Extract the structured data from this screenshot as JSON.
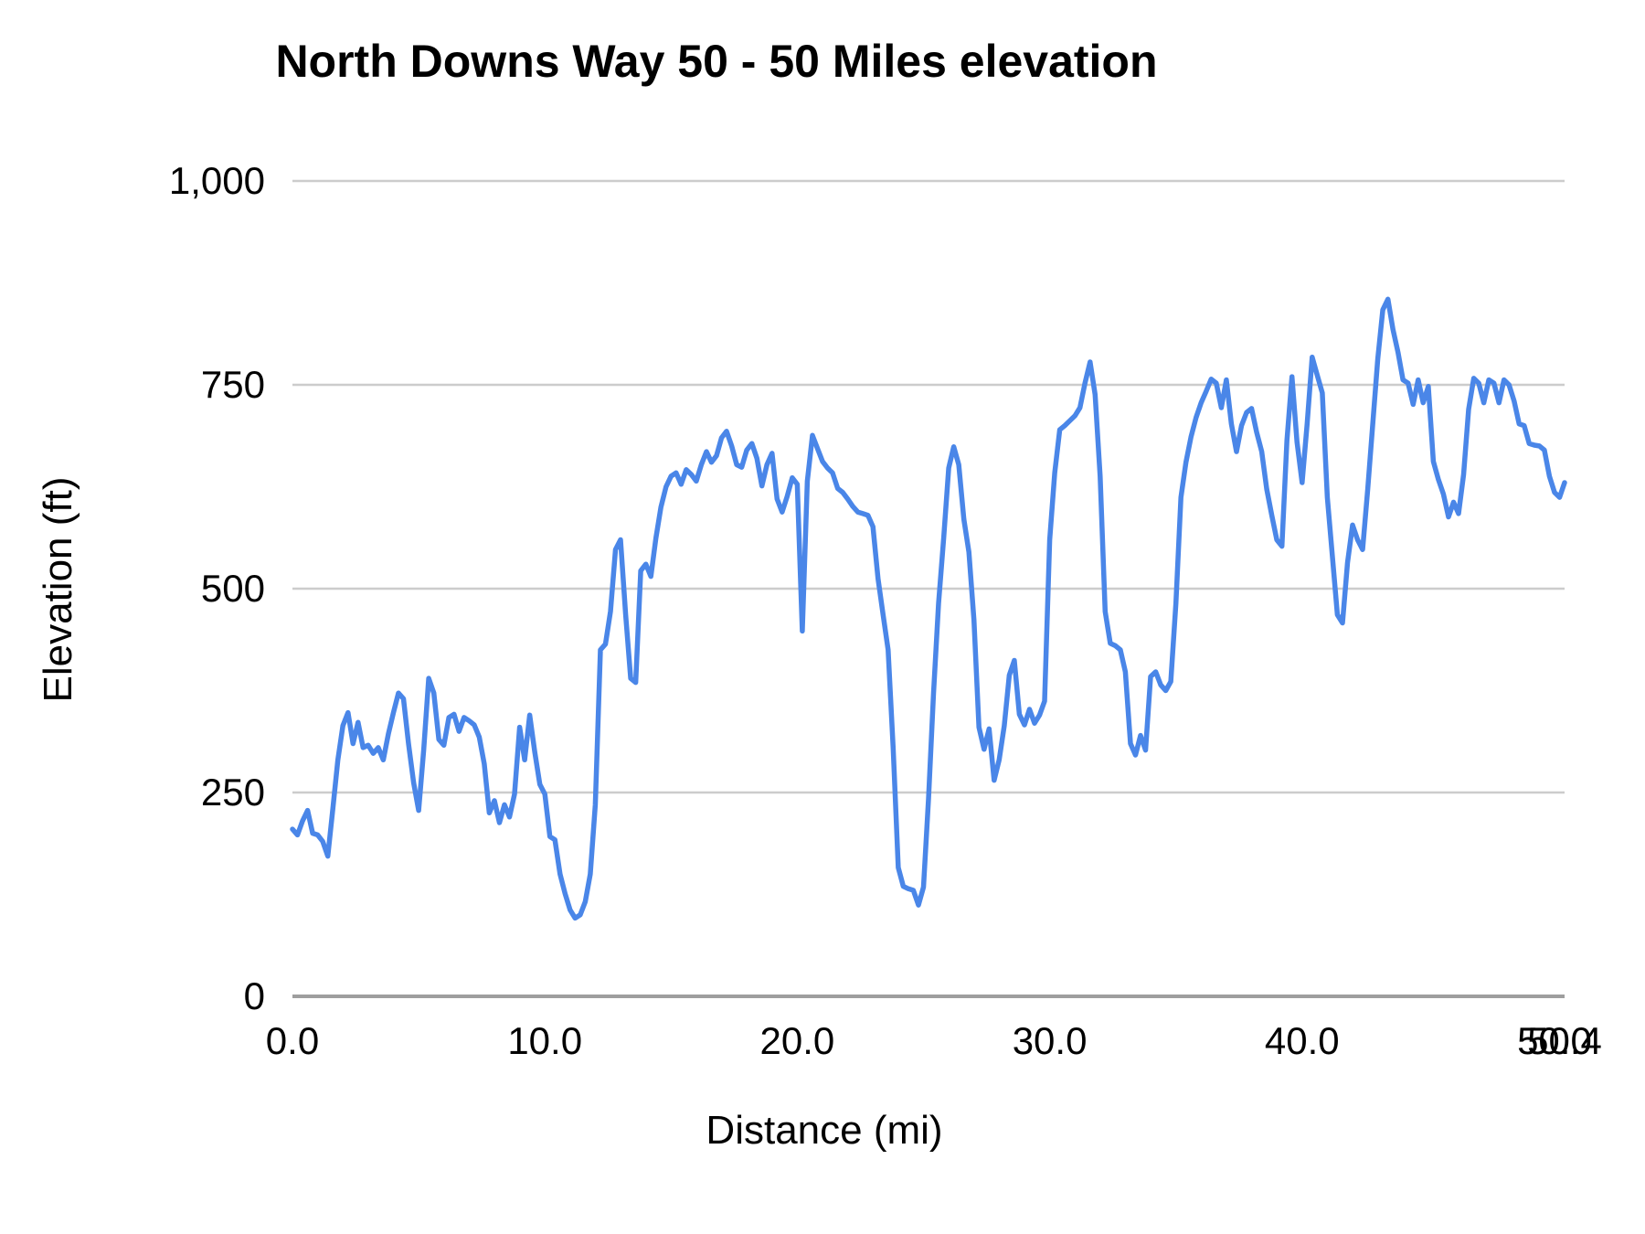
{
  "title": "North Downs Way 50 - 50 Miles elevation",
  "y_axis_title": "Elevation (ft)",
  "x_axis_title": "Distance (mi)",
  "colors": {
    "line": "#4A86E8",
    "gridline": "#cccccc",
    "baseline": "#9e9e9e",
    "text": "#000000",
    "background": "#ffffff"
  },
  "chart_data": {
    "type": "line",
    "title": "North Downs Way 50 - 50 Miles elevation",
    "xlabel": "Distance (mi)",
    "ylabel": "Elevation (ft)",
    "xlim": [
      0,
      50.4
    ],
    "ylim": [
      0,
      1000
    ],
    "grid": "horizontal-only",
    "legend_position": "none",
    "yticks": [
      {
        "v": 0,
        "label": "0"
      },
      {
        "v": 250,
        "label": "250"
      },
      {
        "v": 500,
        "label": "500"
      },
      {
        "v": 750,
        "label": "750"
      },
      {
        "v": 1000,
        "label": "1,000"
      }
    ],
    "xticks": [
      {
        "v": 0,
        "label": "0.0"
      },
      {
        "v": 10,
        "label": "10.0"
      },
      {
        "v": 20,
        "label": "20.0"
      },
      {
        "v": 30,
        "label": "30.0"
      },
      {
        "v": 40,
        "label": "40.0"
      },
      {
        "v": 50,
        "label": "50.0"
      },
      {
        "v": 50.4,
        "label": "50.4"
      }
    ],
    "series_name": "Elevation (ft)",
    "x_start": 0,
    "x_step": 0.2,
    "values": [
      205,
      198,
      215,
      228,
      200,
      198,
      190,
      172,
      230,
      290,
      332,
      348,
      310,
      336,
      305,
      308,
      298,
      305,
      290,
      322,
      348,
      372,
      365,
      310,
      262,
      228,
      302,
      390,
      372,
      315,
      308,
      342,
      346,
      325,
      342,
      338,
      333,
      318,
      285,
      225,
      240,
      213,
      235,
      220,
      248,
      330,
      290,
      345,
      300,
      260,
      248,
      196,
      192,
      150,
      126,
      106,
      96,
      100,
      116,
      150,
      235,
      425,
      432,
      472,
      548,
      560,
      468,
      390,
      385,
      522,
      530,
      515,
      562,
      600,
      625,
      638,
      642,
      628,
      646,
      640,
      632,
      652,
      668,
      655,
      663,
      685,
      693,
      675,
      652,
      649,
      670,
      678,
      660,
      626,
      652,
      666,
      610,
      594,
      613,
      636,
      628,
      448,
      632,
      688,
      672,
      656,
      648,
      642,
      623,
      618,
      610,
      601,
      594,
      592,
      590,
      576,
      512,
      468,
      425,
      305,
      158,
      135,
      132,
      130,
      112,
      134,
      242,
      372,
      482,
      562,
      648,
      674,
      652,
      585,
      545,
      462,
      330,
      303,
      328,
      265,
      290,
      332,
      394,
      412,
      346,
      333,
      352,
      335,
      345,
      362,
      560,
      642,
      695,
      700,
      706,
      712,
      722,
      752,
      778,
      738,
      638,
      472,
      433,
      430,
      425,
      398,
      310,
      296,
      320,
      302,
      392,
      398,
      382,
      375,
      386,
      482,
      612,
      655,
      686,
      710,
      728,
      742,
      757,
      752,
      722,
      756,
      702,
      668,
      700,
      716,
      721,
      692,
      668,
      622,
      590,
      560,
      552,
      682,
      760,
      680,
      630,
      702,
      784,
      762,
      740,
      612,
      540,
      468,
      458,
      532,
      578,
      560,
      548,
      622,
      702,
      782,
      842,
      855,
      818,
      790,
      756,
      752,
      726,
      756,
      728,
      748,
      656,
      634,
      616,
      588,
      606,
      592,
      640,
      720,
      758,
      752,
      728,
      756,
      752,
      728,
      756,
      750,
      730,
      702,
      700,
      678,
      676,
      675,
      670,
      638,
      618,
      612,
      630
    ]
  }
}
